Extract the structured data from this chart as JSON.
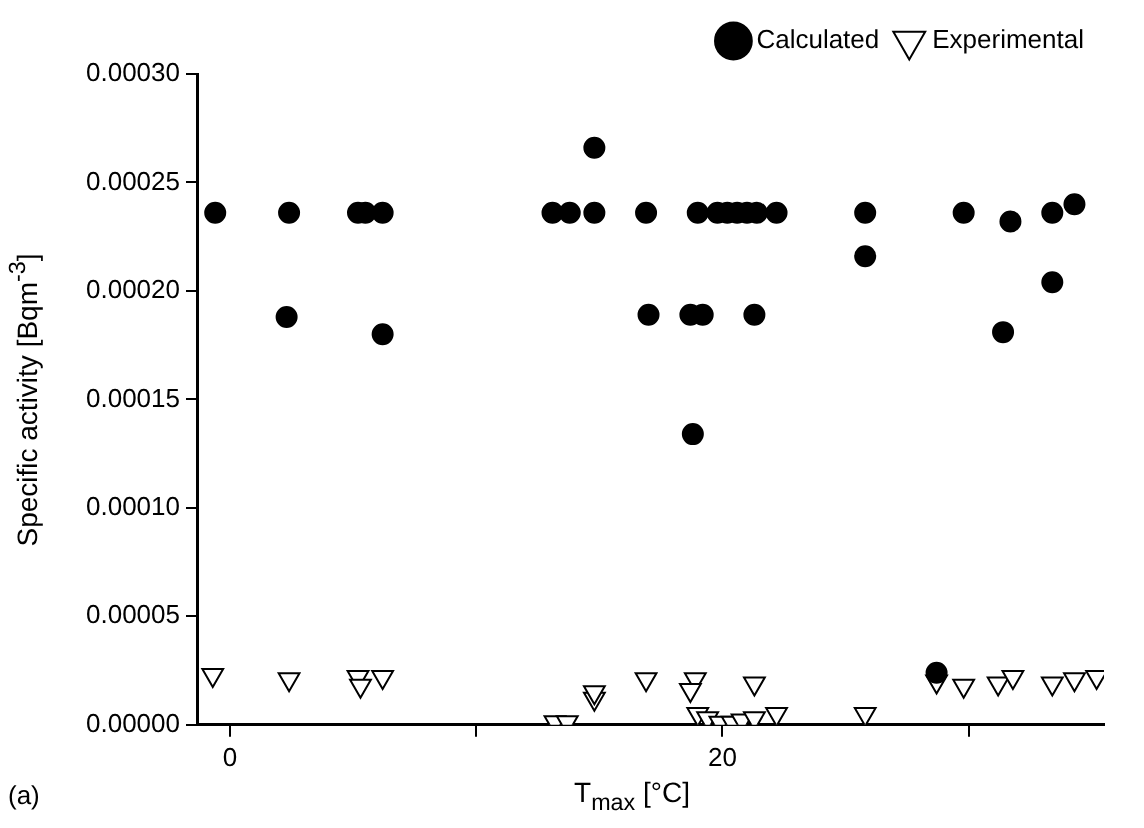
{
  "chart_data": {
    "type": "scatter",
    "xlabel": "T$_{max}$ [°C]",
    "ylabel": "Specific activity [Bqm$^{-3}$]",
    "annotations": [
      "(a)"
    ],
    "xlim": [
      -1.3,
      35.5
    ],
    "xticks": [
      0,
      {
        "value": 10,
        "label": null
      },
      20,
      {
        "value": 30,
        "label": null
      }
    ],
    "ylim": [
      0,
      0.0003
    ],
    "yticks": [
      {
        "value": 0,
        "label": "0.00000"
      },
      {
        "value": 5e-05,
        "label": "0.00005"
      },
      {
        "value": 0.0001,
        "label": "0.00010"
      },
      {
        "value": 0.00015,
        "label": "0.00015"
      },
      {
        "value": 0.0002,
        "label": "0.00020"
      },
      {
        "value": 0.00025,
        "label": "0.00025"
      },
      {
        "value": 0.0003,
        "label": "0.00030"
      }
    ],
    "grid": false,
    "legend": "top right",
    "series": [
      {
        "name": "Calculated",
        "color": "#000000",
        "marker": "circle",
        "x": [
          -0.6,
          2.4,
          2.3,
          5.2,
          5.5,
          6.2,
          6.2,
          13.1,
          13.8,
          14.8,
          14.8,
          16.9,
          17.0,
          18.7,
          19.0,
          19.2,
          18.8,
          19.8,
          20.2,
          20.6,
          21.0,
          21.4,
          21.3,
          22.2,
          25.8,
          25.8,
          28.7,
          29.8,
          31.4,
          31.7,
          33.4,
          33.4,
          34.3
        ],
        "values": [
          0.000236,
          0.000236,
          0.000188,
          0.000236,
          0.000236,
          0.000236,
          0.00018,
          0.000236,
          0.000236,
          0.000236,
          0.000266,
          0.000236,
          0.000189,
          0.000189,
          0.000236,
          0.000189,
          0.000134,
          0.000236,
          0.000236,
          0.000236,
          0.000236,
          0.000236,
          0.000189,
          0.000236,
          0.000236,
          0.000216,
          2.4e-05,
          0.000236,
          0.000181,
          0.000232,
          0.000236,
          0.000204,
          0.00024
        ]
      },
      {
        "name": "Experimental",
        "color": "#000000",
        "marker": "triangle",
        "x": [
          -0.7,
          2.4,
          5.2,
          5.3,
          6.2,
          13.2,
          13.7,
          14.8,
          14.8,
          16.9,
          18.9,
          18.7,
          21.3,
          19.0,
          19.4,
          19.9,
          20.4,
          20.8,
          21.3,
          22.2,
          25.8,
          28.7,
          29.8,
          31.2,
          31.8,
          33.4,
          34.3,
          35.2
        ],
        "values": [
          2.3e-05,
          2.1e-05,
          2.2e-05,
          1.8e-05,
          2.2e-05,
          1.2e-06,
          1.2e-06,
          1.2e-05,
          1.5e-05,
          2.1e-05,
          2.1e-05,
          1.6e-05,
          1.9e-05,
          5e-06,
          3e-06,
          1e-06,
          1e-06,
          2e-06,
          3e-06,
          5e-06,
          5e-06,
          2e-05,
          1.8e-05,
          1.9e-05,
          2.2e-05,
          1.9e-05,
          2.1e-05,
          2.2e-05
        ]
      }
    ]
  }
}
